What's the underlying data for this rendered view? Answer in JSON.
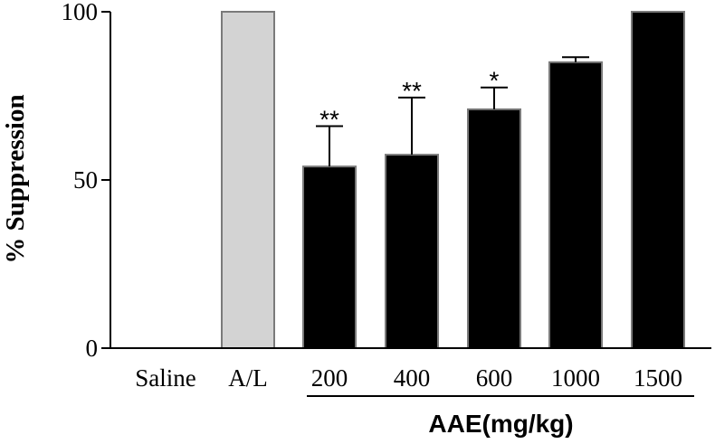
{
  "chart_data": {
    "type": "bar",
    "title": "",
    "xlabel": "",
    "ylabel": "% Suppression",
    "ylim": [
      0,
      100
    ],
    "yticks": [
      0,
      50,
      100
    ],
    "grid": false,
    "categories": [
      "Saline",
      "A/L",
      "200",
      "400",
      "600",
      "1000",
      "1500"
    ],
    "values": [
      0,
      100,
      54,
      57.5,
      71,
      85,
      100
    ],
    "errors": [
      0,
      0,
      12,
      17,
      6.5,
      1.5,
      0
    ],
    "significance": [
      "",
      "",
      "**",
      "**",
      "*",
      "",
      ""
    ],
    "bar_colors": [
      "#000000",
      "#d3d3d3",
      "#000000",
      "#000000",
      "#000000",
      "#000000",
      "#000000"
    ],
    "group_label": "AAE(mg/kg)",
    "group_start": 2,
    "group_end": 6
  }
}
